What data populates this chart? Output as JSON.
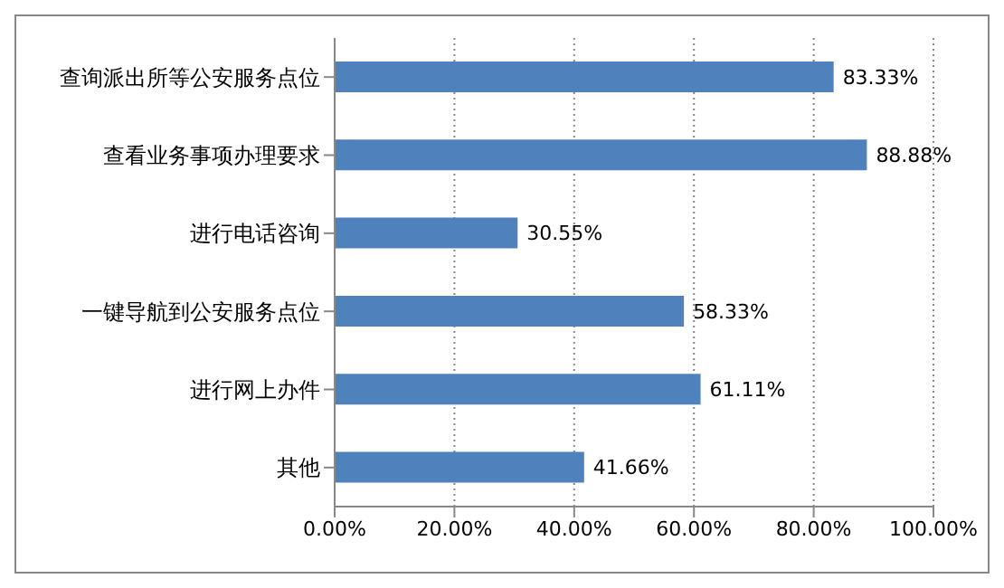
{
  "chart_data": {
    "type": "bar",
    "orientation": "horizontal",
    "categories": [
      "查询派出所等公安服务点位",
      "查看业务事项办理要求",
      "进行电话咨询",
      "一键导航到公安服务点位",
      "进行网上办件",
      "其他"
    ],
    "values": [
      83.33,
      88.88,
      30.55,
      58.33,
      61.11,
      41.66
    ],
    "value_labels": [
      "83.33%",
      "88.88%",
      "30.55%",
      "58.33%",
      "61.11%",
      "41.66%"
    ],
    "color": "#4f81bd",
    "xlim": [
      0,
      100
    ],
    "xticks": [
      {
        "value": 0,
        "label": "0.00%"
      },
      {
        "value": 20,
        "label": "20.00%"
      },
      {
        "value": 40,
        "label": "40.00%"
      },
      {
        "value": 60,
        "label": "60.00%"
      },
      {
        "value": 80,
        "label": "80.00%"
      },
      {
        "value": 100,
        "label": "100.00%"
      }
    ],
    "grid": "x",
    "legend": false
  }
}
